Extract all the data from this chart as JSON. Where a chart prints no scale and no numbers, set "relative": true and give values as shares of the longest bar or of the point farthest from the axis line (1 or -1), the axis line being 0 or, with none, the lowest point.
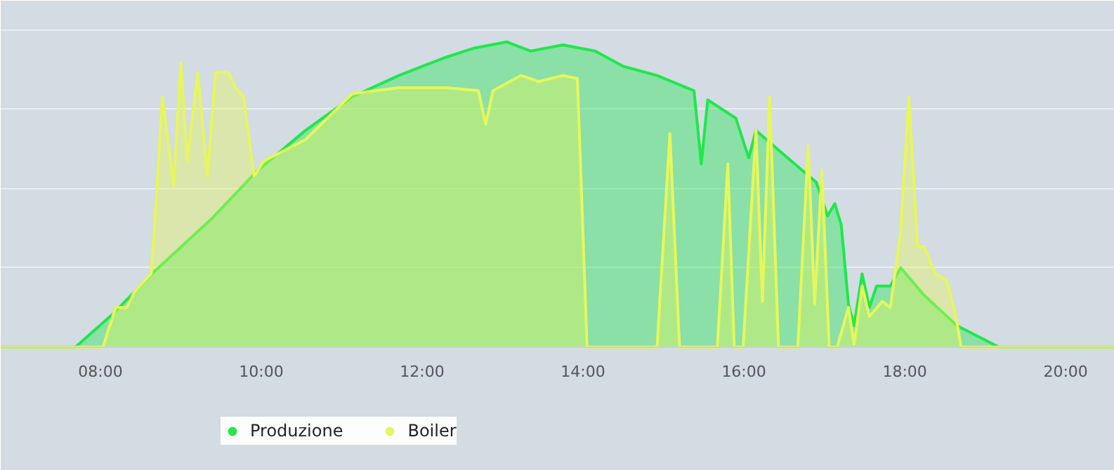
{
  "chart_data": {
    "type": "area",
    "relative": true,
    "xlim": [
      6.76,
      20.61
    ],
    "xticks": [
      {
        "value": 8,
        "label": "08:00"
      },
      {
        "value": 10,
        "label": "10:00"
      },
      {
        "value": 12,
        "label": "12:00"
      },
      {
        "value": 14,
        "label": "14:00"
      },
      {
        "value": 16,
        "label": "16:00"
      },
      {
        "value": 18,
        "label": "18:00"
      },
      {
        "value": 20,
        "label": "20:00"
      }
    ],
    "grid": "y",
    "legend": "bottom left",
    "series": [
      {
        "name": "Produzione",
        "color": "#1ee84a",
        "x": [
          6.76,
          7.69,
          8.16,
          8.68,
          9.38,
          9.96,
          10.55,
          11.13,
          11.71,
          12.0,
          12.3,
          12.65,
          13.05,
          13.35,
          13.75,
          14.15,
          14.5,
          14.92,
          15.38,
          15.47,
          15.55,
          15.9,
          16.06,
          16.15,
          16.5,
          16.9,
          17.04,
          17.13,
          17.21,
          17.3,
          17.37,
          17.47,
          17.56,
          17.65,
          17.82,
          17.95,
          18.24,
          18.65,
          19.17,
          20.61
        ],
        "values": [
          0,
          0,
          0.11,
          0.25,
          0.42,
          0.58,
          0.71,
          0.82,
          0.89,
          0.92,
          0.95,
          0.98,
          1.0,
          0.97,
          0.99,
          0.97,
          0.92,
          0.89,
          0.84,
          0.6,
          0.81,
          0.75,
          0.62,
          0.71,
          0.63,
          0.54,
          0.43,
          0.47,
          0.4,
          0.14,
          0.07,
          0.24,
          0.13,
          0.2,
          0.2,
          0.26,
          0.17,
          0.07,
          0,
          0
        ]
      },
      {
        "name": "Boiler",
        "color": "#e6f75a",
        "x": [
          6.76,
          8.03,
          8.19,
          8.33,
          8.42,
          8.63,
          8.68,
          8.77,
          8.91,
          9.0,
          9.08,
          9.21,
          9.33,
          9.43,
          9.59,
          9.68,
          9.78,
          9.91,
          10.03,
          10.55,
          11.13,
          11.71,
          12.3,
          12.7,
          12.79,
          12.88,
          13.23,
          13.45,
          13.75,
          13.93,
          14.05,
          14.92,
          15.08,
          15.2,
          15.67,
          15.8,
          15.88,
          15.99,
          16.15,
          16.23,
          16.32,
          16.43,
          16.67,
          16.8,
          16.88,
          16.97,
          17.06,
          17.16,
          17.3,
          17.37,
          17.47,
          17.56,
          17.72,
          17.82,
          17.95,
          18.05,
          18.16,
          18.24,
          18.38,
          18.52,
          18.63,
          18.7,
          20.61
        ],
        "values": [
          0,
          0,
          0.13,
          0.13,
          0.18,
          0.24,
          0.42,
          0.82,
          0.53,
          0.93,
          0.61,
          0.9,
          0.56,
          0.9,
          0.9,
          0.85,
          0.82,
          0.56,
          0.61,
          0.68,
          0.83,
          0.85,
          0.85,
          0.84,
          0.73,
          0.84,
          0.89,
          0.87,
          0.89,
          0.88,
          0,
          0,
          0.7,
          0,
          0,
          0.6,
          0,
          0,
          0.71,
          0.15,
          0.82,
          0,
          0,
          0.66,
          0.14,
          0.58,
          0,
          0,
          0.13,
          0.01,
          0.2,
          0.1,
          0.15,
          0.13,
          0.38,
          0.82,
          0.33,
          0.33,
          0.24,
          0.22,
          0.11,
          0,
          0
        ]
      }
    ]
  }
}
